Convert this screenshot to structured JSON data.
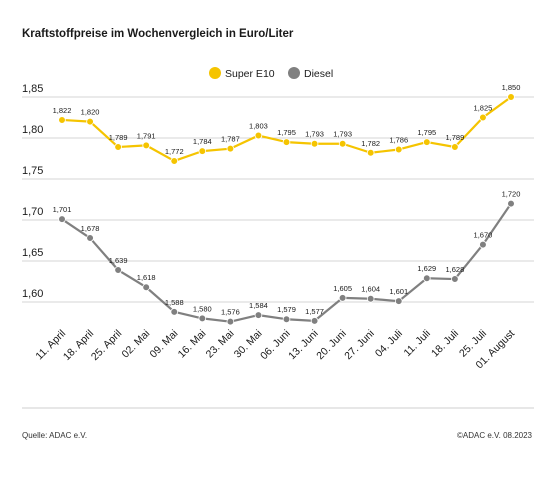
{
  "title": "Kraftstoffpreise im Wochenvergleich in Euro/Liter",
  "footer": {
    "source": "Quelle: ADAC e.V.",
    "copyright": "©ADAC e.V. 08.2023"
  },
  "chart_data": {
    "type": "line",
    "categories": [
      "11. April",
      "18. April",
      "25. April",
      "02. Mai",
      "09. Mai",
      "16. Mai",
      "23. Mai",
      "30. Mai",
      "06. Juni",
      "13. Juni",
      "20. Juni",
      "27. Juni",
      "04. Juli",
      "11. Juli",
      "18. Juli",
      "25. Juli",
      "01. August"
    ],
    "y_ticks": [
      "1,85",
      "1,80",
      "1,75",
      "1,70",
      "1,65",
      "1,60"
    ],
    "ylim": [
      1.555,
      1.865
    ],
    "legend_position": "top-center",
    "series": [
      {
        "name": "Super E10",
        "color": "#f5c400",
        "values": [
          1.822,
          1.82,
          1.789,
          1.791,
          1.772,
          1.784,
          1.787,
          1.803,
          1.795,
          1.793,
          1.793,
          1.782,
          1.786,
          1.795,
          1.789,
          1.825,
          1.85
        ],
        "labels": [
          "1,822",
          "1,820",
          "1,789",
          "1,791",
          "1,772",
          "1,784",
          "1,787",
          "1,803",
          "1,795",
          "1,793",
          "1,793",
          "1,782",
          "1,786",
          "1,795",
          "1,789",
          "1,825",
          "1,850"
        ]
      },
      {
        "name": "Diesel",
        "color": "#808080",
        "values": [
          1.701,
          1.678,
          1.639,
          1.618,
          1.588,
          1.58,
          1.576,
          1.584,
          1.579,
          1.577,
          1.605,
          1.604,
          1.601,
          1.629,
          1.628,
          1.67,
          1.72
        ],
        "labels": [
          "1,701",
          "1,678",
          "1,639",
          "1,618",
          "1,588",
          "1,580",
          "1,576",
          "1,584",
          "1,579",
          "1,577",
          "1,605",
          "1,604",
          "1,601",
          "1,629",
          "1,628",
          "1,670",
          "1,720"
        ]
      }
    ]
  }
}
